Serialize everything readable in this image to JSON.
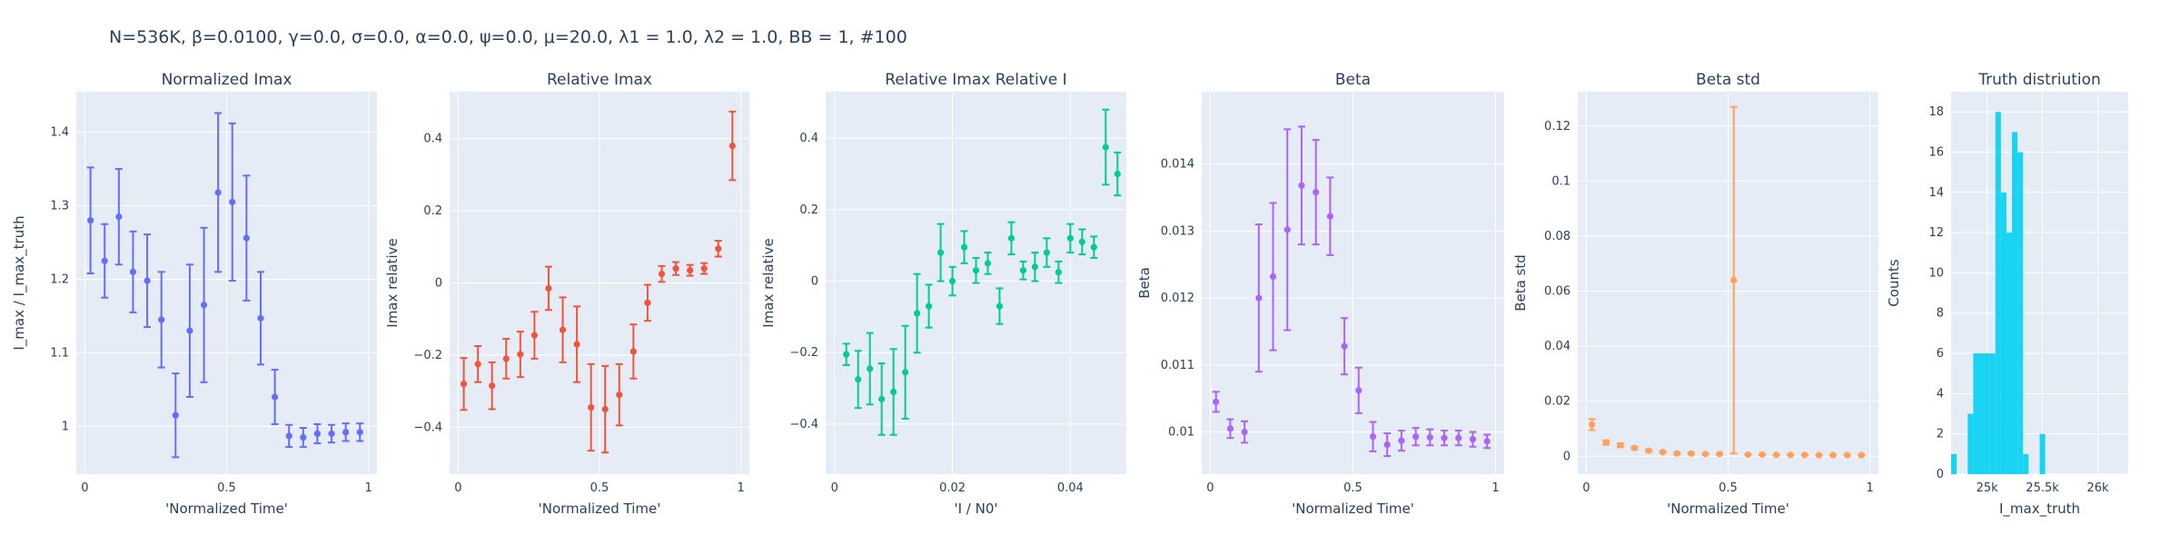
{
  "suptitle": "N=536K, β=0.0100, γ=0.0, σ=0.0,  α=0.0, ψ=0.0, μ=20.0, λ1 = 1.0, λ2 = 1.0, BB = 1, #100",
  "chart_data": [
    {
      "type": "scatter",
      "title": "Normalized Imax",
      "xlabel": "'Normalized Time'",
      "ylabel": "I_max / I_max_truth",
      "xlim": [
        -0.03,
        1.03
      ],
      "ylim": [
        0.935,
        1.455
      ],
      "xticks": [
        0,
        0.5,
        1
      ],
      "xticklabels": [
        "0",
        "0.5",
        "1"
      ],
      "yticks": [
        1,
        1.1,
        1.2,
        1.3,
        1.4
      ],
      "yticklabels": [
        "1",
        "1.1",
        "1.2",
        "1.3",
        "1.4"
      ],
      "color": "#636efa",
      "x": [
        0.02,
        0.07,
        0.12,
        0.17,
        0.22,
        0.27,
        0.32,
        0.37,
        0.42,
        0.47,
        0.52,
        0.57,
        0.62,
        0.67,
        0.72,
        0.77,
        0.82,
        0.87,
        0.92,
        0.97
      ],
      "y": [
        1.28,
        1.225,
        1.285,
        1.21,
        1.198,
        1.145,
        1.015,
        1.13,
        1.165,
        1.318,
        1.305,
        1.256,
        1.147,
        1.04,
        0.987,
        0.985,
        0.99,
        0.99,
        0.992,
        0.992
      ],
      "err": [
        0.072,
        0.05,
        0.065,
        0.055,
        0.063,
        0.065,
        0.057,
        0.09,
        0.105,
        0.108,
        0.107,
        0.085,
        0.063,
        0.037,
        0.015,
        0.013,
        0.013,
        0.012,
        0.012,
        0.012
      ]
    },
    {
      "type": "scatter",
      "title": "Relative Imax",
      "xlabel": "'Normalized Time'",
      "ylabel": "Imax relative",
      "xlim": [
        -0.03,
        1.03
      ],
      "ylim": [
        -0.53,
        0.53
      ],
      "xticks": [
        0,
        0.5,
        1
      ],
      "xticklabels": [
        "0",
        "0.5",
        "1"
      ],
      "yticks": [
        -0.4,
        -0.2,
        0,
        0.2,
        0.4
      ],
      "yticklabels": [
        "−0.4",
        "−0.2",
        "0",
        "0.2",
        "0.4"
      ],
      "color": "#ef553b",
      "x": [
        0.02,
        0.07,
        0.12,
        0.17,
        0.22,
        0.27,
        0.32,
        0.37,
        0.42,
        0.47,
        0.52,
        0.57,
        0.62,
        0.67,
        0.72,
        0.77,
        0.82,
        0.87,
        0.92,
        0.97
      ],
      "y": [
        -0.28,
        -0.225,
        -0.285,
        -0.21,
        -0.198,
        -0.145,
        -0.015,
        -0.13,
        -0.17,
        -0.345,
        -0.35,
        -0.31,
        -0.19,
        -0.055,
        0.025,
        0.04,
        0.035,
        0.04,
        0.095,
        0.38
      ],
      "err": [
        0.072,
        0.05,
        0.065,
        0.055,
        0.063,
        0.065,
        0.06,
        0.09,
        0.105,
        0.12,
        0.12,
        0.085,
        0.075,
        0.05,
        0.022,
        0.018,
        0.015,
        0.015,
        0.022,
        0.095
      ]
    },
    {
      "type": "scatter",
      "title": "Relative Imax Relative I",
      "xlabel": "'I / N0'",
      "ylabel": "Imax relative",
      "xlim": [
        -0.0015,
        0.0495
      ],
      "ylim": [
        -0.54,
        0.53
      ],
      "xticks": [
        0,
        0.02,
        0.04
      ],
      "xticklabels": [
        "0",
        "0.02",
        "0.04"
      ],
      "yticks": [
        -0.4,
        -0.2,
        0,
        0.2,
        0.4
      ],
      "yticklabels": [
        "−0.4",
        "−0.2",
        "0",
        "0.2",
        "0.4"
      ],
      "color": "#00cc96",
      "x": [
        0.002,
        0.004,
        0.006,
        0.008,
        0.01,
        0.012,
        0.014,
        0.016,
        0.018,
        0.02,
        0.022,
        0.024,
        0.026,
        0.028,
        0.03,
        0.032,
        0.034,
        0.036,
        0.038,
        0.04,
        0.042,
        0.044,
        0.046,
        0.048
      ],
      "y": [
        -0.205,
        -0.275,
        -0.245,
        -0.33,
        -0.31,
        -0.255,
        -0.09,
        -0.07,
        0.08,
        0.0,
        0.095,
        0.03,
        0.05,
        -0.07,
        0.12,
        0.03,
        0.04,
        0.08,
        0.025,
        0.12,
        0.11,
        0.095,
        0.375,
        0.3
      ],
      "err": [
        0.03,
        0.08,
        0.1,
        0.1,
        0.12,
        0.13,
        0.11,
        0.06,
        0.08,
        0.04,
        0.045,
        0.035,
        0.03,
        0.05,
        0.045,
        0.025,
        0.04,
        0.04,
        0.03,
        0.04,
        0.035,
        0.03,
        0.105,
        0.06
      ]
    },
    {
      "type": "scatter",
      "title": "Beta",
      "xlabel": "'Normalized Time'",
      "ylabel": "Beta",
      "xlim": [
        -0.03,
        1.03
      ],
      "ylim": [
        0.00937,
        0.01508
      ],
      "xticks": [
        0,
        0.5,
        1
      ],
      "xticklabels": [
        "0",
        "0.5",
        "1"
      ],
      "yticks": [
        0.01,
        0.011,
        0.012,
        0.013,
        0.014
      ],
      "yticklabels": [
        "0.01",
        "0.011",
        "0.012",
        "0.013",
        "0.014"
      ],
      "color": "#ab63fa",
      "x": [
        0.02,
        0.07,
        0.12,
        0.17,
        0.22,
        0.27,
        0.32,
        0.37,
        0.42,
        0.47,
        0.52,
        0.57,
        0.62,
        0.67,
        0.72,
        0.77,
        0.82,
        0.87,
        0.92,
        0.97
      ],
      "y": [
        0.01045,
        0.01005,
        0.01,
        0.012,
        0.01232,
        0.01302,
        0.01368,
        0.01358,
        0.01322,
        0.01128,
        0.01062,
        0.00993,
        0.00981,
        0.00987,
        0.00993,
        0.00992,
        0.00991,
        0.00991,
        0.00989,
        0.00986
      ],
      "err": [
        0.00015,
        0.00014,
        0.00016,
        0.0011,
        0.0011,
        0.0015,
        0.00088,
        0.00078,
        0.00058,
        0.00042,
        0.00034,
        0.00022,
        0.00017,
        0.00015,
        0.00013,
        0.00012,
        0.00011,
        0.00011,
        0.00011,
        0.0001
      ]
    },
    {
      "type": "scatter",
      "title": "Beta std",
      "xlabel": "'Normalized Time'",
      "ylabel": "Beta std",
      "xlim": [
        -0.03,
        1.03
      ],
      "ylim": [
        -0.0065,
        0.1325
      ],
      "xticks": [
        0,
        0.5,
        1
      ],
      "xticklabels": [
        "0",
        "0.5",
        "1"
      ],
      "yticks": [
        0,
        0.02,
        0.04,
        0.06,
        0.08,
        0.1,
        0.12
      ],
      "yticklabels": [
        "0",
        "0.02",
        "0.04",
        "0.06",
        "0.08",
        "0.1",
        "0.12"
      ],
      "color": "#ffa15a",
      "x": [
        0.02,
        0.07,
        0.12,
        0.17,
        0.22,
        0.27,
        0.32,
        0.37,
        0.42,
        0.47,
        0.52,
        0.57,
        0.62,
        0.67,
        0.72,
        0.77,
        0.82,
        0.87,
        0.92,
        0.97
      ],
      "y": [
        0.0115,
        0.005,
        0.004,
        0.003,
        0.002,
        0.0015,
        0.001,
        0.001,
        0.0008,
        0.0008,
        0.064,
        0.0006,
        0.0006,
        0.0005,
        0.0005,
        0.0005,
        0.0004,
        0.0004,
        0.0004,
        0.0004
      ],
      "err": [
        0.002,
        0.0008,
        0.0007,
        0.0005,
        0.0004,
        0.0003,
        0.0003,
        0.0003,
        0.0002,
        0.0002,
        0.063,
        0.0002,
        0.0002,
        0.0001,
        0.0001,
        0.0001,
        0.0001,
        0.0001,
        0.0001,
        0.0001
      ]
    },
    {
      "type": "bar",
      "title": "Truth distriution",
      "xlabel": "I_max_truth",
      "ylabel": "Counts",
      "xlim": [
        24675,
        26275
      ],
      "ylim": [
        0,
        19
      ],
      "xticks": [
        25000,
        25500,
        26000
      ],
      "xticklabels": [
        "25k",
        "25.5k",
        "26k"
      ],
      "yticks": [
        0,
        2,
        4,
        6,
        8,
        10,
        12,
        14,
        16,
        18
      ],
      "yticklabels": [
        "0",
        "2",
        "4",
        "6",
        "8",
        "10",
        "12",
        "14",
        "16",
        "18"
      ],
      "color": "#19d3f3",
      "bin_starts": [
        24675,
        24775,
        24825,
        24875,
        24925,
        24975,
        25025,
        25075,
        25125,
        25175,
        25225,
        25275,
        25325,
        25375,
        25425,
        25475,
        25525,
        25575,
        25625,
        25675,
        25725,
        25775,
        25825,
        25875,
        25925,
        25975,
        26025,
        26075,
        26125,
        26175,
        26225
      ],
      "bin_width": 50,
      "counts": [
        1,
        0,
        3,
        6,
        6,
        6,
        6,
        18,
        14,
        12,
        17,
        16,
        1,
        0,
        0,
        2,
        0,
        0,
        0,
        0,
        0,
        0,
        0,
        0,
        0,
        0,
        0,
        0,
        0,
        0,
        0
      ]
    }
  ]
}
